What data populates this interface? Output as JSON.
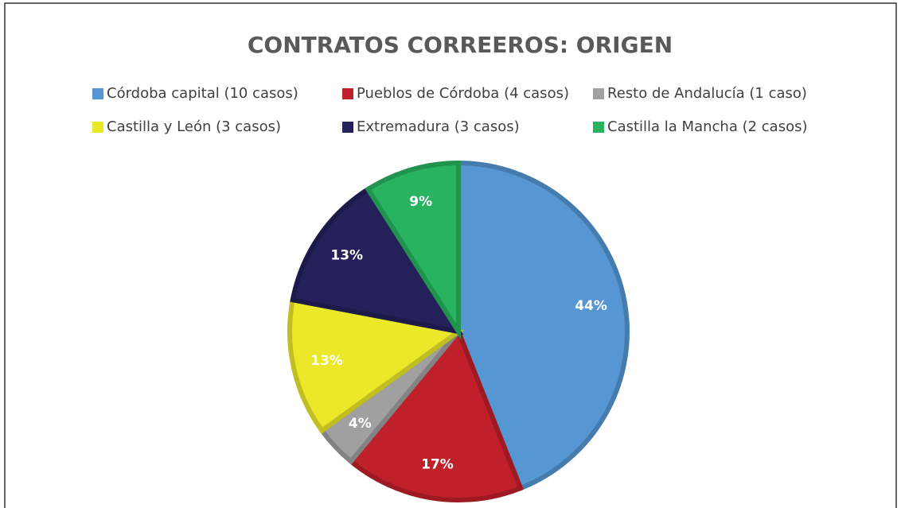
{
  "chart_data": {
    "type": "pie",
    "title": "CONTRATOS CORREEROS: ORIGEN",
    "categories": [
      "Córdoba capital (10 casos)",
      "Pueblos de Córdoba (4 casos)",
      "Resto de Andalucía (1 caso)",
      "Castilla y León (3 casos)",
      "Extremadura (3 casos)",
      "Castilla la Mancha (2 casos)"
    ],
    "values": [
      44,
      17,
      4,
      13,
      13,
      9
    ],
    "value_labels": [
      "44%",
      "17%",
      "4%",
      "13%",
      "13%",
      "9%"
    ],
    "colors": [
      "#5596d3",
      "#c0202a",
      "#a0a0a0",
      "#ebe82a",
      "#23205a",
      "#27b35f"
    ],
    "legend": "top"
  }
}
